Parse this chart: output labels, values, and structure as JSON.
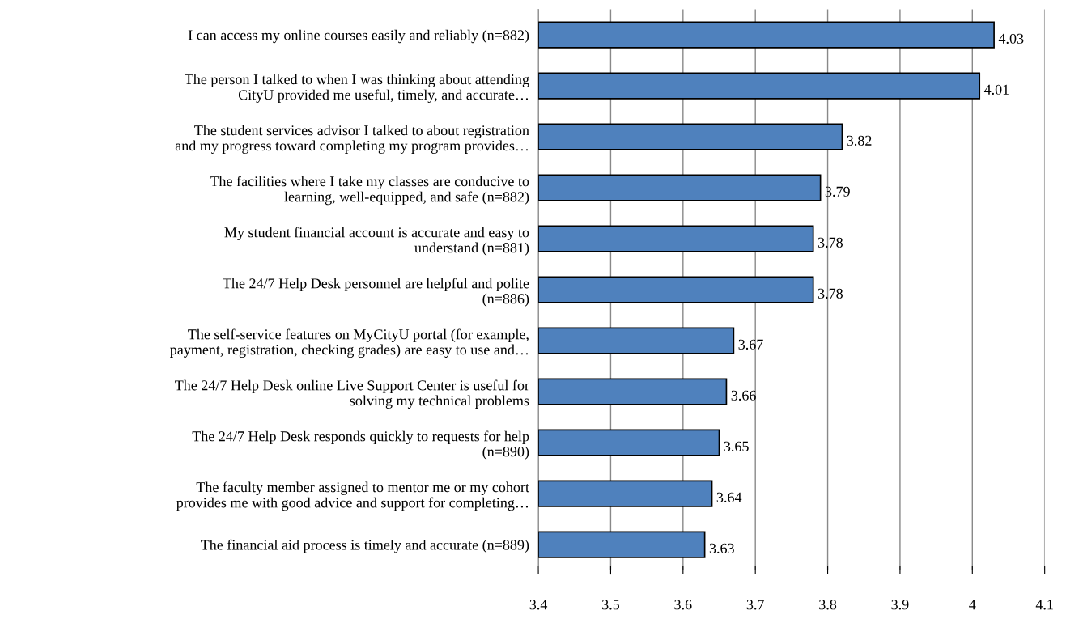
{
  "chart_data": {
    "type": "bar",
    "orientation": "horizontal",
    "categories": [
      "I can access my online courses easily and reliably (n=882)",
      "The person I talked to when I was thinking about attending\nCityU provided me useful, timely, and accurate…",
      "The student services advisor I talked to about registration\nand my progress toward completing my program provides…",
      "The facilities where I take my classes are conducive to\nlearning, well-equipped, and safe (n=882)",
      "My student financial account is accurate and easy to\nunderstand (n=881)",
      "The 24/7 Help Desk personnel are helpful and polite\n(n=886)",
      "The self-service features on MyCityU portal (for example,\npayment, registration, checking grades) are easy to use and…",
      "The 24/7 Help Desk online Live Support Center is useful for\nsolving my technical problems",
      "The 24/7 Help Desk responds quickly to requests for help\n(n=890)",
      "The faculty member assigned to mentor me or my cohort\nprovides me with good advice and support for completing…",
      "The financial aid process is timely and accurate (n=889)"
    ],
    "values": [
      4.03,
      4.01,
      3.82,
      3.79,
      3.78,
      3.78,
      3.67,
      3.66,
      3.65,
      3.64,
      3.63
    ],
    "color": "#4f81bd",
    "data_labels": true,
    "grid": "x",
    "xlim": [
      3.4,
      4.1
    ],
    "xticks": [
      3.4,
      3.5,
      3.6,
      3.7,
      3.8,
      3.9,
      4,
      4.1
    ]
  }
}
